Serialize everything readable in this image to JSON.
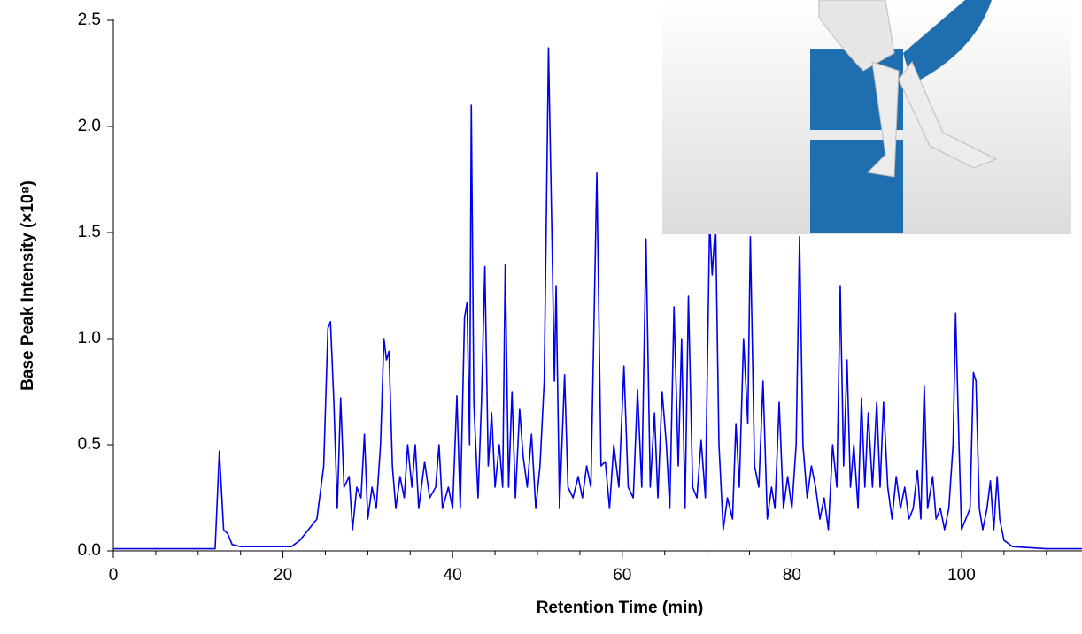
{
  "chart_data": {
    "type": "line",
    "xlabel": "Retention Time (min)",
    "ylabel": "Base Peak Intensity (×10⁸)",
    "xlim": [
      0,
      114.2
    ],
    "ylim": [
      0,
      2.5
    ],
    "xticks": [
      0,
      20,
      40,
      60,
      80,
      100
    ],
    "xminorticks": [
      5,
      10,
      15,
      25,
      30,
      35,
      45,
      50,
      55,
      65,
      70,
      75,
      85,
      90,
      95,
      105,
      110
    ],
    "yticks": [
      {
        "value": 0,
        "label": "0.0"
      },
      0.5,
      {
        "value": 1,
        "label": "1.0"
      },
      1.5,
      {
        "value": 2,
        "label": "2.0"
      },
      2.5
    ],
    "series": [
      {
        "color": "#0000ee",
        "x": [
          0,
          12,
          12.5,
          13,
          13.5,
          14,
          15,
          19,
          20,
          21,
          22,
          23,
          24,
          24.8,
          25.3,
          25.6,
          26,
          26.4,
          26.8,
          27.2,
          27.8,
          28.2,
          28.7,
          29.2,
          29.6,
          30,
          30.5,
          31,
          31.5,
          31.9,
          32.2,
          32.5,
          32.9,
          33.3,
          33.8,
          34.3,
          34.7,
          35.2,
          35.6,
          36,
          36.7,
          37.3,
          38,
          38.4,
          38.8,
          39.5,
          40,
          40.5,
          40.9,
          41.4,
          41.7,
          42,
          42.2,
          42.5,
          43,
          43.4,
          43.8,
          44.2,
          44.6,
          45,
          45.5,
          45.9,
          46.2,
          46.6,
          47,
          47.4,
          47.9,
          48.3,
          48.8,
          49.3,
          49.8,
          50.3,
          50.8,
          51.3,
          51.7,
          52,
          52.2,
          52.6,
          53.2,
          53.6,
          54.2,
          54.8,
          55.3,
          55.8,
          56.3,
          57,
          57.5,
          58,
          58.5,
          59,
          59.6,
          60.2,
          60.7,
          61.3,
          61.8,
          62.3,
          62.8,
          63.3,
          63.8,
          64.2,
          64.7,
          65.2,
          65.6,
          66.1,
          66.6,
          67,
          67.4,
          67.8,
          68.3,
          68.8,
          69.3,
          69.8,
          70.3,
          70.6,
          71,
          71.4,
          71.9,
          72.4,
          73,
          73.4,
          73.8,
          74.3,
          74.8,
          75.1,
          75.6,
          76.1,
          76.6,
          77.1,
          77.6,
          78,
          78.5,
          79,
          79.5,
          80,
          80.5,
          80.9,
          81.3,
          81.8,
          82.3,
          82.8,
          83.3,
          83.8,
          84.3,
          84.8,
          85.3,
          85.7,
          86.1,
          86.5,
          86.9,
          87.3,
          87.8,
          88.2,
          88.6,
          89,
          89.5,
          90,
          90.4,
          90.8,
          91.3,
          91.8,
          92.3,
          92.8,
          93.3,
          93.8,
          94.3,
          94.8,
          95.2,
          95.6,
          96,
          96.6,
          97,
          97.5,
          98,
          98.5,
          99,
          99.3,
          99.7,
          100,
          100.5,
          101,
          101.4,
          101.7,
          102.1,
          102.5,
          103,
          103.4,
          103.8,
          104.2,
          104.5,
          105,
          106,
          110,
          114.2
        ],
        "values": [
          0.01,
          0.01,
          0.47,
          0.1,
          0.08,
          0.03,
          0.02,
          0.02,
          0.02,
          0.02,
          0.05,
          0.1,
          0.15,
          0.4,
          1.05,
          1.08,
          0.7,
          0.2,
          0.72,
          0.3,
          0.35,
          0.1,
          0.3,
          0.25,
          0.55,
          0.15,
          0.3,
          0.2,
          0.5,
          1.0,
          0.9,
          0.94,
          0.4,
          0.2,
          0.35,
          0.25,
          0.5,
          0.3,
          0.5,
          0.2,
          0.42,
          0.25,
          0.3,
          0.5,
          0.2,
          0.3,
          0.2,
          0.73,
          0.2,
          1.1,
          1.17,
          0.5,
          2.1,
          0.7,
          0.25,
          0.7,
          1.34,
          0.4,
          0.65,
          0.3,
          0.5,
          0.3,
          1.35,
          0.3,
          0.75,
          0.25,
          0.67,
          0.45,
          0.3,
          0.55,
          0.2,
          0.4,
          0.8,
          2.37,
          1.5,
          0.8,
          1.25,
          0.2,
          0.83,
          0.3,
          0.25,
          0.35,
          0.25,
          0.4,
          0.3,
          1.78,
          0.4,
          0.42,
          0.2,
          0.5,
          0.3,
          0.87,
          0.3,
          0.25,
          0.76,
          0.3,
          1.47,
          0.3,
          0.65,
          0.25,
          0.75,
          0.5,
          0.2,
          1.15,
          0.4,
          1.0,
          0.2,
          1.2,
          0.3,
          0.25,
          0.52,
          0.25,
          1.55,
          1.3,
          1.55,
          0.5,
          0.1,
          0.25,
          0.15,
          0.6,
          0.3,
          1.0,
          0.6,
          1.48,
          0.4,
          0.3,
          0.8,
          0.15,
          0.3,
          0.2,
          0.7,
          0.2,
          0.35,
          0.2,
          0.5,
          1.48,
          0.5,
          0.25,
          0.4,
          0.3,
          0.15,
          0.25,
          0.1,
          0.5,
          0.3,
          1.25,
          0.4,
          0.9,
          0.3,
          0.5,
          0.2,
          0.72,
          0.3,
          0.65,
          0.3,
          0.7,
          0.3,
          0.7,
          0.3,
          0.15,
          0.35,
          0.2,
          0.3,
          0.15,
          0.2,
          0.38,
          0.15,
          0.78,
          0.2,
          0.35,
          0.15,
          0.2,
          0.1,
          0.2,
          0.5,
          1.12,
          0.5,
          0.1,
          0.15,
          0.2,
          0.84,
          0.8,
          0.2,
          0.1,
          0.2,
          0.33,
          0.1,
          0.35,
          0.15,
          0.05,
          0.02,
          0.01,
          0.01
        ]
      }
    ]
  }
}
